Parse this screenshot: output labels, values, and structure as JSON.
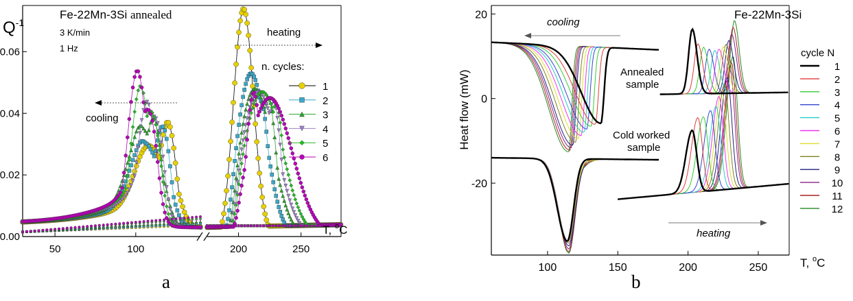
{
  "chart_data": [
    {
      "panel": "a",
      "type": "scatter",
      "title": "Fe-22Mn-3Si",
      "title_suffix": "annealed",
      "notes": [
        "3 K/min",
        "1 Hz"
      ],
      "ylabel": "Q",
      "ylabel_sup": "-1",
      "xlabel": "T, ",
      "xlabel_unit": "°C",
      "xlabel_unit_sup": "o",
      "xlabel_unit_main": "C",
      "yticks": [
        "0.00",
        "0.02",
        "0.04",
        "0.06"
      ],
      "xticks": [
        "50",
        "100",
        "200",
        "250"
      ],
      "ylim": [
        0,
        0.075
      ],
      "xlim_left": [
        30,
        140
      ],
      "xlim_right": [
        175,
        282
      ],
      "broken_axis": true,
      "legend_title": "n. cycles:",
      "legend_position": "right",
      "annotations": {
        "cooling": "cooling",
        "heating": "heating"
      },
      "series": [
        {
          "name": "1",
          "color": "#e6d000",
          "marker": "circle",
          "cool_peak": [
            120,
            0.038
          ],
          "cool_shoulder": [
            107,
            0.029
          ],
          "cool_drop": 128,
          "cool_base_w": 32,
          "heat_peak": [
            204,
            0.074
          ],
          "heat_rise": 186,
          "heat_w": 8,
          "heat_sub": []
        },
        {
          "name": "2",
          "color": "#3aa8c9",
          "marker": "square",
          "cool_peak": [
            117,
            0.037
          ],
          "cool_shoulder": [
            104,
            0.031
          ],
          "cool_drop": 124,
          "cool_base_w": 31,
          "heat_peak": [
            210,
            0.053
          ],
          "heat_rise": 193,
          "heat_w": 12,
          "heat_sub": [
            [
              218,
              0.044
            ]
          ]
        },
        {
          "name": "3",
          "color": "#2aa32a",
          "marker": "triangle-up",
          "cool_peak": [
            111,
            0.039
          ],
          "cool_shoulder": [
            103,
            0.036
          ],
          "cool_drop": 120,
          "cool_base_w": 30,
          "heat_peak": [
            213,
            0.048
          ],
          "heat_rise": 196,
          "heat_w": 14,
          "heat_sub": [
            [
              224,
              0.045
            ]
          ]
        },
        {
          "name": "4",
          "color": "#9c80c8",
          "marker": "triangle-down",
          "cool_peak": [
            107,
            0.044
          ],
          "cool_shoulder": [
            112,
            0.038
          ],
          "cool_drop": 118,
          "cool_base_w": 29,
          "heat_peak": [
            216,
            0.047
          ],
          "heat_rise": 197,
          "heat_w": 15,
          "heat_sub": [
            [
              228,
              0.044
            ]
          ]
        },
        {
          "name": "5",
          "color": "#22bb22",
          "marker": "diamond",
          "cool_peak": [
            103,
            0.049
          ],
          "cool_shoulder": [
            110,
            0.039
          ],
          "cool_drop": 116,
          "cool_base_w": 28,
          "heat_peak": [
            219,
            0.047
          ],
          "heat_rise": 198,
          "heat_w": 16,
          "heat_sub": [
            [
              230,
              0.043
            ]
          ]
        },
        {
          "name": "6",
          "color": "#b800b8",
          "marker": "circle",
          "cool_peak": [
            101,
            0.054
          ],
          "cool_shoulder": [
            108,
            0.04
          ],
          "cool_drop": 114,
          "cool_base_w": 27,
          "heat_peak": [
            225,
            0.045
          ],
          "heat_rise": 199,
          "heat_w": 18,
          "heat_sub": [
            [
              212,
              0.047
            ]
          ]
        }
      ]
    },
    {
      "panel": "b",
      "type": "line",
      "title": "Fe-22Mn-3Si",
      "ylabel": "Heat flow (mW)",
      "xlabel": "T, ",
      "xlabel_unit": "°C",
      "yticks": [
        "20",
        "0",
        "-20"
      ],
      "ytick_values": [
        20,
        0,
        -20
      ],
      "xticks": [
        "100",
        "150",
        "200",
        "250"
      ],
      "xtick_values": [
        100,
        150,
        200,
        250
      ],
      "xlim": [
        60,
        272
      ],
      "ylim": [
        -37,
        22
      ],
      "legend_title": "cycle N",
      "legend_position": "right",
      "annotations": {
        "cooling": "cooling",
        "heating": "heating",
        "annealed_1": "Annealed",
        "annealed_2": "sample",
        "cold_1": "Cold worked",
        "cold_2": "sample"
      },
      "series": [
        {
          "name": "1",
          "color": "#000000",
          "ann_cool": [
            138,
            -5.5
          ],
          "ann_heat": [
            203,
            16.3
          ],
          "cw_cool": [
            140,
            -8.5
          ],
          "cw_heat": [
            203,
            -7.5
          ]
        },
        {
          "name": "2",
          "color": "#e03a3a",
          "ann_cool": [
            134,
            -5.8
          ],
          "ann_heat": [
            207,
            12.8
          ],
          "cw_cool": [
            137,
            -9.3
          ],
          "cw_heat": [
            207,
            -4.5
          ]
        },
        {
          "name": "3",
          "color": "#33cc33",
          "ann_cool": [
            131,
            -6.3
          ],
          "ann_heat": [
            211,
            12.0
          ],
          "cw_cool": [
            134,
            -10.3
          ],
          "cw_heat": [
            211,
            -4.3
          ]
        },
        {
          "name": "4",
          "color": "#3344cc",
          "ann_cool": [
            128,
            -7.0
          ],
          "ann_heat": [
            215,
            11.5
          ],
          "cw_cool": [
            131,
            -11.5
          ],
          "cw_heat": [
            216,
            -2.8
          ]
        },
        {
          "name": "5",
          "color": "#22cccc",
          "ann_cool": [
            126,
            -7.8
          ],
          "ann_heat": [
            219,
            11.2
          ],
          "cw_cool": [
            128,
            -12.8
          ],
          "cw_heat": [
            220,
            -1.8
          ]
        },
        {
          "name": "6",
          "color": "#ee33ee",
          "ann_cool": [
            124,
            -8.6
          ],
          "ann_heat": [
            222,
            11.5
          ],
          "cw_cool": [
            126,
            -14.0
          ],
          "cw_heat": [
            222,
            0.5
          ]
        },
        {
          "name": "7",
          "color": "#dddd33",
          "ann_cool": [
            122,
            -9.4
          ],
          "ann_heat": [
            225,
            12.0
          ],
          "cw_cool": [
            124,
            -15.3
          ],
          "cw_heat": [
            224,
            2.0
          ]
        },
        {
          "name": "8",
          "color": "#808020",
          "ann_cool": [
            120,
            -10.2
          ],
          "ann_heat": [
            227,
            12.6
          ],
          "cw_cool": [
            122,
            -16.6
          ],
          "cw_heat": [
            226,
            3.5
          ]
        },
        {
          "name": "9",
          "color": "#202080",
          "ann_cool": [
            118,
            -11.0
          ],
          "ann_heat": [
            229,
            13.5
          ],
          "cw_cool": [
            120,
            -17.8
          ],
          "cw_heat": [
            228,
            5.0
          ]
        },
        {
          "name": "10",
          "color": "#882288",
          "ann_cool": [
            117,
            -11.6
          ],
          "ann_heat": [
            231,
            15.0
          ],
          "cw_cool": [
            118,
            -18.8
          ],
          "cw_heat": [
            230,
            6.8
          ]
        },
        {
          "name": "11",
          "color": "#aa2222",
          "ann_cool": [
            116,
            -12.2
          ],
          "ann_heat": [
            232,
            16.6
          ],
          "cw_cool": [
            116,
            -19.6
          ],
          "cw_heat": [
            231,
            8.5
          ]
        },
        {
          "name": "12",
          "color": "#228822",
          "ann_cool": [
            115,
            -12.6
          ],
          "ann_heat": [
            233,
            18.2
          ],
          "cw_cool": [
            115,
            -20.2
          ],
          "cw_heat": [
            232,
            10.0
          ]
        }
      ]
    }
  ],
  "panel_labels": {
    "a": "a",
    "b": "b"
  }
}
